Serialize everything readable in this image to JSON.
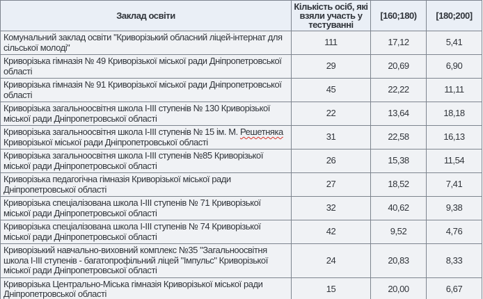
{
  "colors": {
    "header_bg": "#eaeff6",
    "row_bg": "#f0f2f5",
    "border": "#7d848e",
    "text": "#30343a",
    "spellcheck_underline": "#d93025"
  },
  "table": {
    "headers": {
      "institution": "Заклад освіти",
      "participants": "Кількість осіб, які взяли участь у тестуванні",
      "range_160_180": "[160;180)",
      "range_180_200": "[180;200]"
    },
    "rows": [
      {
        "institution": "Комунальний заклад освіти \"Криворізький обласний ліцей-інтернат для сільської молоді\"",
        "participants": "111",
        "range_160_180": "17,12",
        "range_180_200": "5,41"
      },
      {
        "institution": "Криворізька гімназія № 49 Криворізької міської ради Дніпропетровської області",
        "participants": "29",
        "range_160_180": "20,69",
        "range_180_200": "6,90"
      },
      {
        "institution": "Криворізька гімназія № 91 Криворізької міської ради Дніпропетровської області",
        "participants": "45",
        "range_160_180": "22,22",
        "range_180_200": "11,11"
      },
      {
        "institution": "Криворізька загальноосвітня школа І-ІІІ ступенів № 130 Криворізької міської ради Дніпропетровської області",
        "participants": "22",
        "range_160_180": "13,64",
        "range_180_200": "18,18"
      },
      {
        "institution": "Криворізька загальноосвітня школа І-ІІІ ступенів № 15 ім. М. Решетняка Криворізької міської ради Дніпропетровської області",
        "participants": "31",
        "range_160_180": "22,58",
        "range_180_200": "16,13",
        "spellcheck_word": "Решетняка"
      },
      {
        "institution": "Криворізька загальноосвітня школа І-ІІІ ступенів №85 Криворізької міської ради Дніпропетровської області",
        "participants": "26",
        "range_160_180": "15,38",
        "range_180_200": "11,54"
      },
      {
        "institution": "Криворізька педагогічна гімназія Криворізької міської ради Дніпропетровської області",
        "participants": "27",
        "range_160_180": "18,52",
        "range_180_200": "7,41"
      },
      {
        "institution": "Криворізька спеціалізована школа І-ІІІ ступенів № 71 Криворізької міської ради Дніпропетровської області",
        "participants": "32",
        "range_160_180": "40,62",
        "range_180_200": "9,38"
      },
      {
        "institution": "Криворізька спеціалізована школа І-ІІІ ступенів № 74 Криворізької міської ради Дніпропетровської області",
        "participants": "42",
        "range_160_180": "9,52",
        "range_180_200": "4,76"
      },
      {
        "institution": "Криворізький навчально-виховний комплекс №35 \"Загальноосвітня школа І-ІІІ ступенів - багатопрофільний ліцей \"Імпульс\" Криворізької міської ради Дніпропетровської області",
        "participants": "24",
        "range_160_180": "20,83",
        "range_180_200": "8,33"
      },
      {
        "institution": "Криворізька Центрально-Міська гімназія Криворізької міської ради Дніпропетровської області",
        "participants": "15",
        "range_160_180": "20,00",
        "range_180_200": "6,67"
      }
    ]
  },
  "chart_data": {
    "type": "table",
    "title": "",
    "columns": [
      "Заклад освіти",
      "Кількість осіб, які взяли участь у тестуванні",
      "[160;180)",
      "[180;200]"
    ],
    "rows": [
      [
        "Комунальний заклад освіти \"Криворізький обласний ліцей-інтернат для сільської молоді\"",
        111,
        17.12,
        5.41
      ],
      [
        "Криворізька гімназія № 49 Криворізької міської ради Дніпропетровської області",
        29,
        20.69,
        6.9
      ],
      [
        "Криворізька гімназія № 91 Криворізької міської ради Дніпропетровської області",
        45,
        22.22,
        11.11
      ],
      [
        "Криворізька загальноосвітня школа І-ІІІ ступенів № 130 Криворізької міської ради Дніпропетровської області",
        22,
        13.64,
        18.18
      ],
      [
        "Криворізька загальноосвітня школа І-ІІІ ступенів № 15 ім. М. Решетняка Криворізької міської ради Дніпропетровської області",
        31,
        22.58,
        16.13
      ],
      [
        "Криворізька загальноосвітня школа І-ІІІ ступенів №85 Криворізької міської ради Дніпропетровської області",
        26,
        15.38,
        11.54
      ],
      [
        "Криворізька педагогічна гімназія Криворізької міської ради Дніпропетровської області",
        27,
        18.52,
        7.41
      ],
      [
        "Криворізька спеціалізована школа І-ІІІ ступенів № 71 Криворізької міської ради Дніпропетровської області",
        32,
        40.62,
        9.38
      ],
      [
        "Криворізька спеціалізована школа І-ІІІ ступенів № 74 Криворізької міської ради Дніпропетровської області",
        42,
        9.52,
        4.76
      ],
      [
        "Криворізький навчально-виховний комплекс №35 \"Загальноосвітня школа І-ІІІ ступенів - багатопрофільний ліцей \"Імпульс\" Криворізької міської ради Дніпропетровської області",
        24,
        20.83,
        8.33
      ],
      [
        "Криворізька Центрально-Міська гімназія Криворізької міської ради Дніпропетровської області",
        15,
        20.0,
        6.67
      ]
    ]
  }
}
